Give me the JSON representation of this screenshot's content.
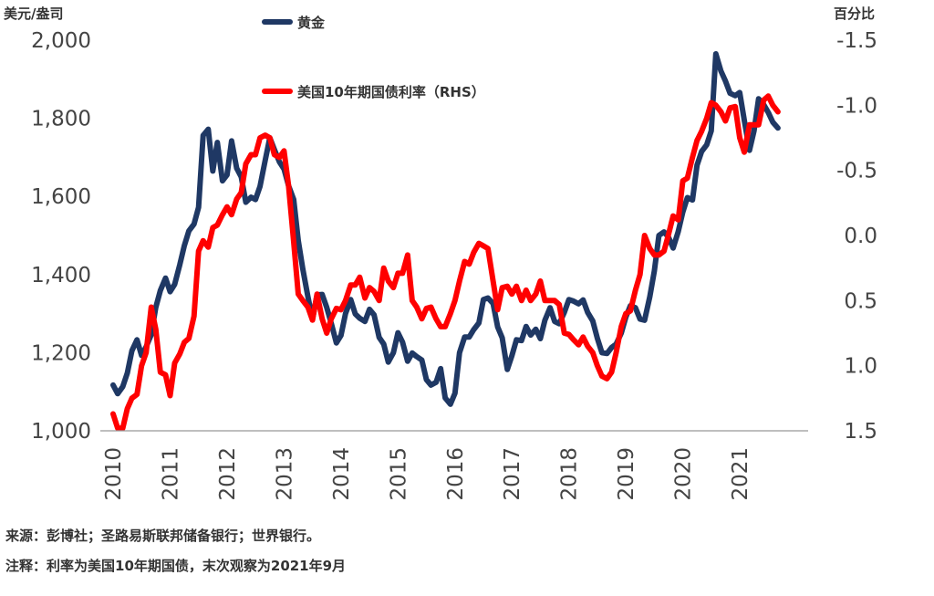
{
  "chart_data": {
    "type": "line",
    "title": "",
    "left_unit": "美元/盎司",
    "right_unit": "百分比",
    "xlabel": "",
    "ylabel": "",
    "x_ticks": [
      "2010",
      "2011",
      "2012",
      "2013",
      "2014",
      "2015",
      "2016",
      "2017",
      "2018",
      "2019",
      "2020",
      "2021"
    ],
    "x_range": [
      2010.0,
      2022.2
    ],
    "y_left_range": [
      1000,
      2000
    ],
    "y_left_ticks": [
      "1,000",
      "1,200",
      "1,400",
      "1,600",
      "1,800",
      "2,000"
    ],
    "y_left_tick_values": [
      1000,
      1200,
      1400,
      1600,
      1800,
      2000
    ],
    "y_right_range": [
      1.5,
      -1.5
    ],
    "y_right_inverted": true,
    "y_right_ticks": [
      "1.5",
      "1.0",
      "0.5",
      "0.0",
      "-0.5",
      "-1.0",
      "-1.5"
    ],
    "y_right_tick_values": [
      1.5,
      1.0,
      0.5,
      0.0,
      -0.5,
      -1.0,
      -1.5
    ],
    "legend_position": "top-center",
    "grid": false,
    "series": [
      {
        "name": "黄金",
        "axis": "left",
        "color": "#1f3864",
        "x": [
          2010.0,
          2010.08,
          2010.17,
          2010.25,
          2010.33,
          2010.42,
          2010.5,
          2010.58,
          2010.67,
          2010.75,
          2010.83,
          2010.92,
          2011.0,
          2011.08,
          2011.17,
          2011.25,
          2011.33,
          2011.42,
          2011.5,
          2011.58,
          2011.67,
          2011.75,
          2011.83,
          2011.92,
          2012.0,
          2012.08,
          2012.17,
          2012.25,
          2012.33,
          2012.42,
          2012.5,
          2012.58,
          2012.67,
          2012.75,
          2012.83,
          2012.92,
          2013.0,
          2013.08,
          2013.17,
          2013.25,
          2013.33,
          2013.42,
          2013.5,
          2013.58,
          2013.67,
          2013.75,
          2013.83,
          2013.92,
          2014.0,
          2014.08,
          2014.17,
          2014.25,
          2014.33,
          2014.42,
          2014.5,
          2014.58,
          2014.67,
          2014.75,
          2014.83,
          2014.92,
          2015.0,
          2015.08,
          2015.17,
          2015.25,
          2015.33,
          2015.42,
          2015.5,
          2015.58,
          2015.67,
          2015.75,
          2015.83,
          2015.92,
          2016.0,
          2016.08,
          2016.17,
          2016.25,
          2016.33,
          2016.42,
          2016.5,
          2016.58,
          2016.67,
          2016.75,
          2016.83,
          2016.92,
          2017.0,
          2017.08,
          2017.17,
          2017.25,
          2017.33,
          2017.42,
          2017.5,
          2017.58,
          2017.67,
          2017.75,
          2017.83,
          2017.92,
          2018.0,
          2018.08,
          2018.17,
          2018.25,
          2018.33,
          2018.42,
          2018.5,
          2018.58,
          2018.67,
          2018.75,
          2018.83,
          2018.92,
          2019.0,
          2019.08,
          2019.17,
          2019.25,
          2019.33,
          2019.42,
          2019.5,
          2019.58,
          2019.67,
          2019.75,
          2019.83,
          2019.92,
          2020.0,
          2020.08,
          2020.17,
          2020.25,
          2020.33,
          2020.42,
          2020.5,
          2020.58,
          2020.67,
          2020.75,
          2020.83,
          2020.92,
          2021.0,
          2021.08,
          2021.17,
          2021.25,
          2021.33,
          2021.42,
          2021.5,
          2021.58,
          2021.67
        ],
        "values": [
          1117,
          1095,
          1113,
          1148,
          1205,
          1233,
          1193,
          1215,
          1246,
          1316,
          1359,
          1391,
          1356,
          1375,
          1425,
          1474,
          1512,
          1529,
          1572,
          1756,
          1772,
          1665,
          1738,
          1640,
          1655,
          1742,
          1672,
          1650,
          1585,
          1598,
          1592,
          1626,
          1693,
          1750,
          1720,
          1688,
          1670,
          1627,
          1592,
          1487,
          1414,
          1343,
          1285,
          1348,
          1349,
          1316,
          1275,
          1225,
          1244,
          1300,
          1336,
          1299,
          1288,
          1280,
          1311,
          1297,
          1239,
          1222,
          1176,
          1200,
          1251,
          1227,
          1178,
          1199,
          1190,
          1181,
          1131,
          1117,
          1124,
          1159,
          1084,
          1068,
          1096,
          1200,
          1240,
          1240,
          1259,
          1276,
          1336,
          1340,
          1326,
          1266,
          1238,
          1157,
          1192,
          1233,
          1231,
          1267,
          1245,
          1260,
          1236,
          1283,
          1315,
          1280,
          1274,
          1303,
          1336,
          1332,
          1325,
          1335,
          1303,
          1281,
          1237,
          1200,
          1198,
          1213,
          1222,
          1250,
          1291,
          1320,
          1315,
          1286,
          1283,
          1343,
          1409,
          1500,
          1509,
          1495,
          1468,
          1510,
          1560,
          1597,
          1591,
          1680,
          1715,
          1732,
          1768,
          1965,
          1921,
          1895,
          1864,
          1858,
          1866,
          1795,
          1718,
          1768,
          1850,
          1835,
          1815,
          1790,
          1775
        ]
      },
      {
        "name": "美国10年期国债利率（RHS）",
        "axis": "right",
        "color": "#ff0000",
        "x": [
          2010.0,
          2010.08,
          2010.17,
          2010.25,
          2010.33,
          2010.42,
          2010.5,
          2010.58,
          2010.67,
          2010.75,
          2010.83,
          2010.92,
          2011.0,
          2011.08,
          2011.17,
          2011.25,
          2011.33,
          2011.42,
          2011.5,
          2011.58,
          2011.67,
          2011.75,
          2011.83,
          2011.92,
          2012.0,
          2012.08,
          2012.17,
          2012.25,
          2012.33,
          2012.42,
          2012.5,
          2012.58,
          2012.67,
          2012.75,
          2012.83,
          2012.92,
          2013.0,
          2013.08,
          2013.17,
          2013.25,
          2013.33,
          2013.42,
          2013.5,
          2013.58,
          2013.67,
          2013.75,
          2013.83,
          2013.92,
          2014.0,
          2014.08,
          2014.17,
          2014.25,
          2014.33,
          2014.42,
          2014.5,
          2014.58,
          2014.67,
          2014.75,
          2014.83,
          2014.92,
          2015.0,
          2015.08,
          2015.17,
          2015.25,
          2015.33,
          2015.42,
          2015.5,
          2015.58,
          2015.67,
          2015.75,
          2015.83,
          2015.92,
          2016.0,
          2016.08,
          2016.17,
          2016.25,
          2016.33,
          2016.42,
          2016.5,
          2016.58,
          2016.67,
          2016.75,
          2016.83,
          2016.92,
          2017.0,
          2017.08,
          2017.17,
          2017.25,
          2017.33,
          2017.42,
          2017.5,
          2017.58,
          2017.67,
          2017.75,
          2017.83,
          2017.92,
          2018.0,
          2018.08,
          2018.17,
          2018.25,
          2018.33,
          2018.42,
          2018.5,
          2018.58,
          2018.67,
          2018.75,
          2018.83,
          2018.92,
          2019.0,
          2019.08,
          2019.17,
          2019.25,
          2019.33,
          2019.42,
          2019.5,
          2019.58,
          2019.67,
          2019.75,
          2019.83,
          2019.92,
          2020.0,
          2020.08,
          2020.17,
          2020.25,
          2020.33,
          2020.42,
          2020.5,
          2020.58,
          2020.67,
          2020.75,
          2020.83,
          2020.92,
          2021.0,
          2021.08,
          2021.17,
          2021.25,
          2021.33,
          2021.42,
          2021.5,
          2021.58,
          2021.67
        ],
        "values": [
          1.37,
          1.48,
          1.48,
          1.33,
          1.25,
          1.22,
          1.0,
          0.9,
          0.55,
          0.72,
          1.05,
          1.07,
          1.23,
          0.98,
          0.91,
          0.82,
          0.79,
          0.62,
          0.12,
          0.04,
          0.09,
          -0.06,
          -0.08,
          -0.16,
          -0.22,
          -0.16,
          -0.28,
          -0.33,
          -0.55,
          -0.62,
          -0.62,
          -0.75,
          -0.77,
          -0.75,
          -0.62,
          -0.6,
          -0.65,
          -0.38,
          0.05,
          0.45,
          0.5,
          0.55,
          0.65,
          0.45,
          0.64,
          0.75,
          0.64,
          0.56,
          0.57,
          0.5,
          0.38,
          0.38,
          0.32,
          0.48,
          0.4,
          0.43,
          0.5,
          0.25,
          0.35,
          0.4,
          0.29,
          0.29,
          0.15,
          0.5,
          0.55,
          0.64,
          0.56,
          0.55,
          0.64,
          0.7,
          0.7,
          0.6,
          0.5,
          0.35,
          0.2,
          0.22,
          0.13,
          0.06,
          0.08,
          0.1,
          0.35,
          0.57,
          0.4,
          0.39,
          0.45,
          0.39,
          0.5,
          0.42,
          0.5,
          0.45,
          0.35,
          0.5,
          0.5,
          0.5,
          0.53,
          0.75,
          0.76,
          0.8,
          0.84,
          0.78,
          0.85,
          0.9,
          1.0,
          1.08,
          1.1,
          1.05,
          0.9,
          0.7,
          0.6,
          0.58,
          0.42,
          0.3,
          0.0,
          0.1,
          0.15,
          0.15,
          0.12,
          -0.01,
          -0.15,
          -0.12,
          -0.42,
          -0.44,
          -0.6,
          -0.73,
          -0.8,
          -0.9,
          -1.02,
          -1.0,
          -0.95,
          -0.88,
          -0.98,
          -0.99,
          -0.75,
          -0.64,
          -0.85,
          -0.85,
          -0.85,
          -1.04,
          -1.07,
          -1.0,
          -0.95
        ]
      }
    ]
  },
  "footnotes": {
    "source": "来源：彭博社；圣路易斯联邦储备银行；世界银行。",
    "note": "注释：利率为美国10年期国债，末次观察为2021年9月"
  }
}
